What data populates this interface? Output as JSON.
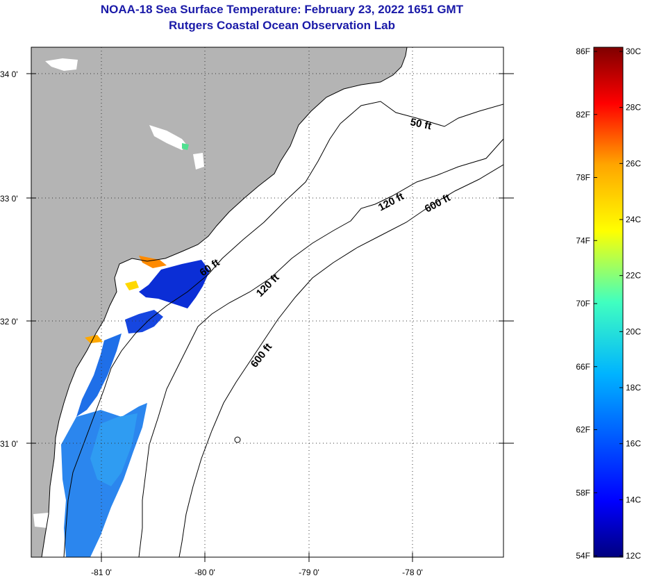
{
  "title": {
    "line1": "NOAA-18 Sea Surface Temperature:  February 23, 2022 1651 GMT",
    "line2": "Rutgers Coastal Ocean Observation Lab"
  },
  "map": {
    "lat_ticks": [
      "34 0'",
      "33 0'",
      "32 0'",
      "31 0'"
    ],
    "lon_ticks": [
      "-81 0'",
      "-80 0'",
      "-79 0'",
      "-78 0'"
    ],
    "contour_labels": [
      "50 ft",
      "120 ft",
      "600 ft",
      "60 ft",
      "120 ft",
      "600 ft"
    ],
    "colors": {
      "land": "#b4b4b4",
      "water": "#ffffff",
      "sst_blue": "#1f6fe8",
      "sst_dark_blue": "#0b2ed6",
      "sst_light_blue": "#2b98f0"
    }
  },
  "colorbar": {
    "fahrenheit_labels": [
      "86F",
      "82F",
      "78F",
      "74F",
      "70F",
      "66F",
      "62F",
      "58F",
      "54F"
    ],
    "celsius_labels": [
      "30C",
      "28C",
      "26C",
      "24C",
      "22C",
      "20C",
      "18C",
      "16C",
      "14C",
      "12C"
    ],
    "range_c": [
      12,
      30
    ],
    "range_f": [
      54,
      86
    ]
  }
}
